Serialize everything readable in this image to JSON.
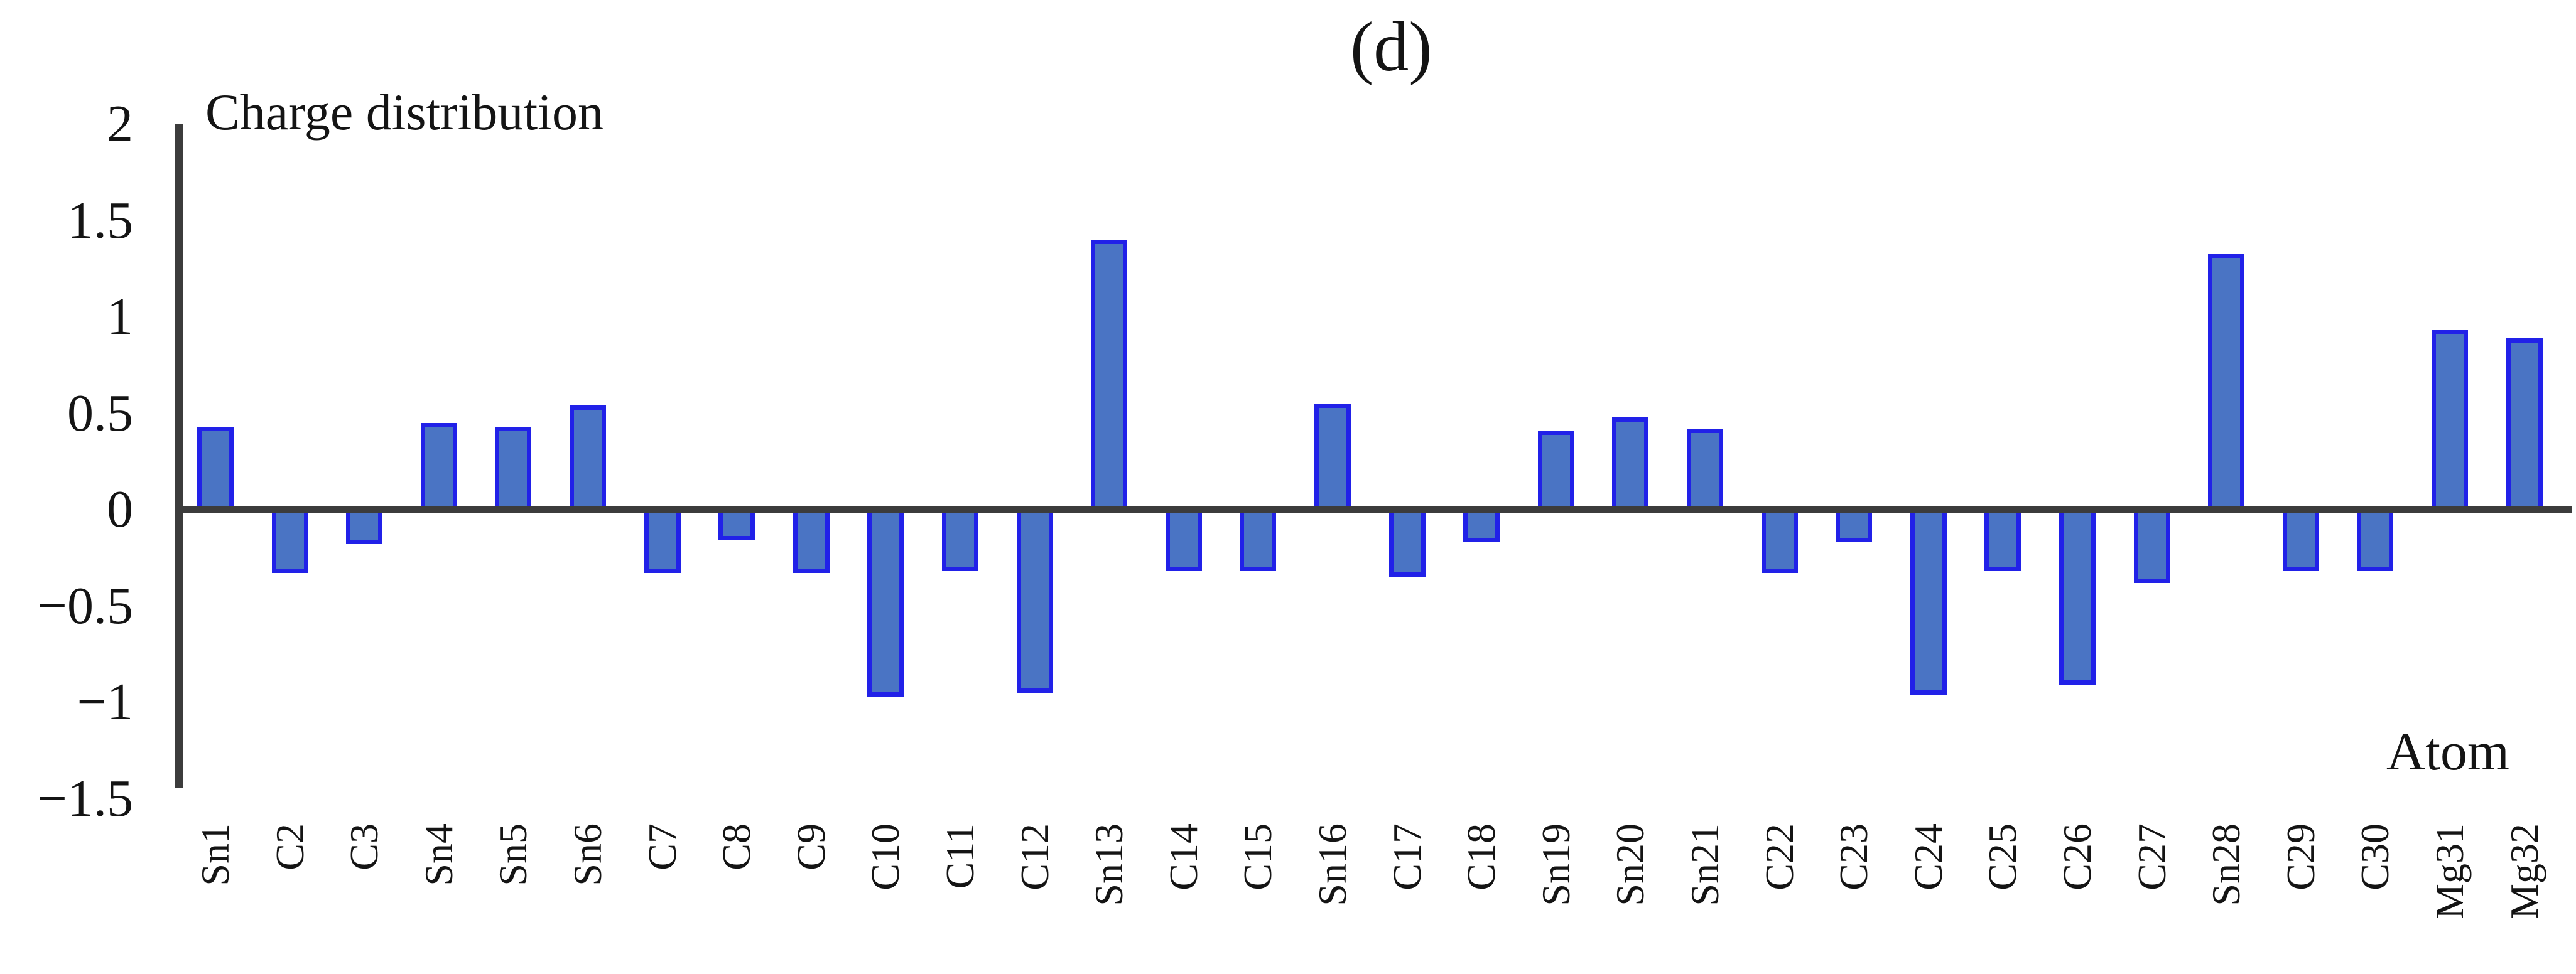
{
  "chart_data": {
    "type": "bar",
    "panel_label": "(d)",
    "title": "Charge distribution",
    "xlabel": "Atom",
    "ylabel": "",
    "ylim": [
      -1.5,
      2
    ],
    "yticks": [
      2,
      1.5,
      1,
      0.5,
      0,
      -0.5,
      -1,
      -1.5
    ],
    "ytick_labels": [
      "2",
      "1.5",
      "1",
      "0.5",
      "0",
      "−0.5",
      "−1",
      "−1.5"
    ],
    "grid": "off",
    "legend": "none",
    "categories": [
      "Sn1",
      "C2",
      "C3",
      "Sn4",
      "Sn5",
      "Sn6",
      "C7",
      "C8",
      "C9",
      "C10",
      "C11",
      "C12",
      "Sn13",
      "C14",
      "C15",
      "Sn16",
      "C17",
      "C18",
      "Sn19",
      "Sn20",
      "Sn21",
      "C22",
      "C23",
      "C24",
      "C25",
      "C26",
      "C27",
      "Sn28",
      "C29",
      "C30",
      "Mg31",
      "Mg32"
    ],
    "values": [
      0.43,
      -0.33,
      -0.18,
      0.45,
      0.43,
      0.54,
      -0.33,
      -0.16,
      -0.33,
      -0.97,
      -0.32,
      -0.95,
      1.4,
      -0.32,
      -0.32,
      0.55,
      -0.35,
      -0.17,
      0.41,
      0.48,
      0.42,
      -0.33,
      -0.17,
      -0.96,
      -0.32,
      -0.91,
      -0.38,
      1.33,
      -0.32,
      -0.32,
      0.93,
      0.89
    ],
    "colors": {
      "bar_fill": "#4a74c4",
      "bar_border": "#2121e8",
      "axis": "#3c3c3c",
      "text": "#141414",
      "background": "#ffffff"
    }
  }
}
